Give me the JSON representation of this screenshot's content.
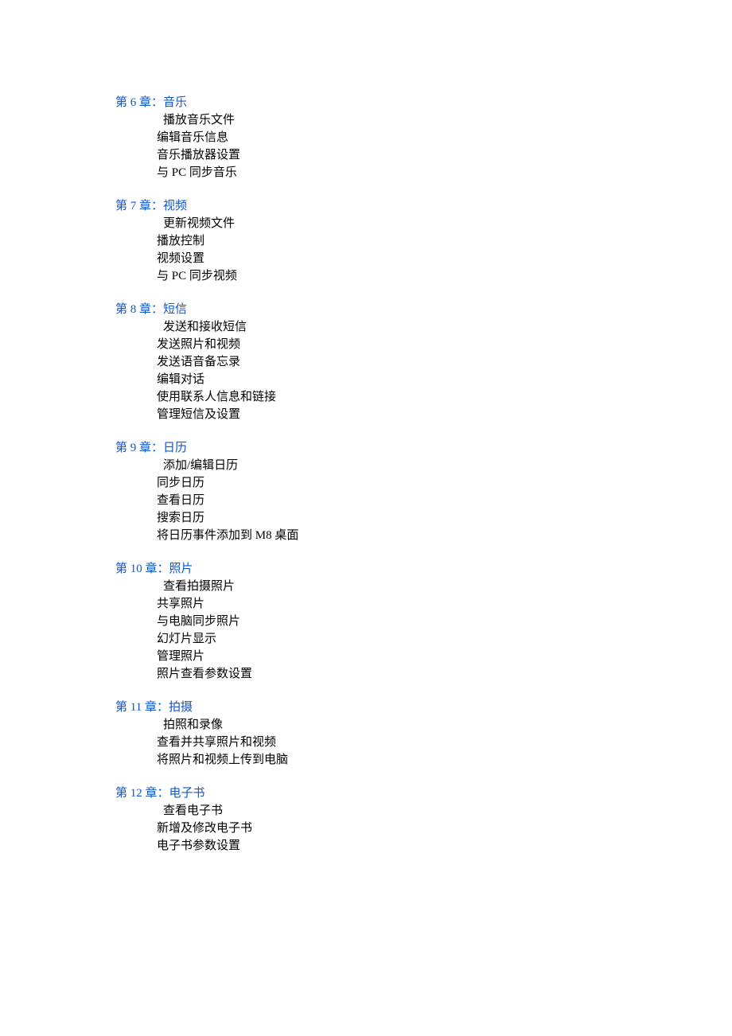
{
  "text_color": "#000000",
  "link_color": "#1155cc",
  "background_color": "#ffffff",
  "font_size": 15,
  "line_height": 22,
  "chapters": [
    {
      "title": "第 6 章：音乐",
      "items": [
        "播放音乐文件",
        "编辑音乐信息",
        "音乐播放器设置",
        "与 PC 同步音乐"
      ]
    },
    {
      "title": "第 7 章：视频",
      "items": [
        "更新视频文件",
        "播放控制",
        "视频设置",
        "与 PC 同步视频"
      ]
    },
    {
      "title": "第 8 章：短信",
      "items": [
        "发送和接收短信",
        "发送照片和视频",
        "发送语音备忘录",
        "编辑对话",
        "使用联系人信息和链接",
        "管理短信及设置"
      ]
    },
    {
      "title": "第 9 章：日历",
      "items": [
        "添加/编辑日历",
        "同步日历",
        "查看日历",
        "搜索日历",
        "将日历事件添加到 M8 桌面"
      ]
    },
    {
      "title": "第 10 章：照片",
      "items": [
        "查看拍摄照片",
        "共享照片",
        "与电脑同步照片",
        "幻灯片显示",
        "管理照片",
        "照片查看参数设置"
      ]
    },
    {
      "title": "第 11 章：拍摄",
      "items": [
        "拍照和录像",
        "查看并共享照片和视频",
        "将照片和视频上传到电脑"
      ]
    },
    {
      "title": "第 12 章：电子书",
      "items": [
        "查看电子书",
        "新增及修改电子书",
        "电子书参数设置"
      ]
    }
  ]
}
